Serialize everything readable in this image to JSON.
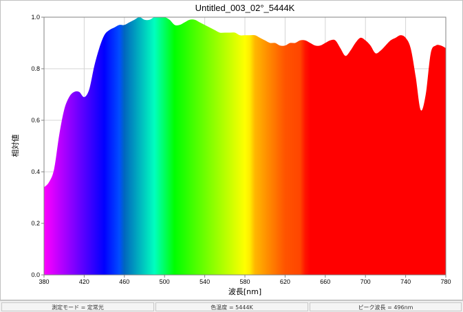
{
  "chart_data": {
    "type": "area",
    "title": "Untitled_003_02°_5444K",
    "xlabel": "波長[nm]",
    "ylabel": "相対値",
    "xlim": [
      380,
      780
    ],
    "ylim": [
      0.0,
      1.0
    ],
    "xticks": [
      "380",
      "420",
      "460",
      "500",
      "540",
      "580",
      "620",
      "660",
      "700",
      "740",
      "780"
    ],
    "yticks": [
      "0.0",
      "0.2",
      "0.4",
      "0.6",
      "0.8",
      "1.0"
    ],
    "grid": true,
    "fill": "visible-spectrum",
    "x": [
      380,
      385,
      390,
      395,
      400,
      405,
      410,
      415,
      420,
      425,
      430,
      435,
      440,
      445,
      450,
      455,
      460,
      465,
      470,
      475,
      480,
      485,
      490,
      495,
      500,
      505,
      510,
      515,
      520,
      525,
      530,
      535,
      540,
      545,
      550,
      555,
      560,
      565,
      570,
      575,
      580,
      585,
      590,
      595,
      600,
      605,
      610,
      615,
      620,
      625,
      630,
      635,
      640,
      645,
      650,
      655,
      660,
      665,
      670,
      675,
      680,
      685,
      690,
      695,
      700,
      705,
      710,
      715,
      720,
      725,
      730,
      735,
      740,
      745,
      750,
      755,
      760,
      765,
      770,
      775,
      780
    ],
    "y": [
      0.34,
      0.36,
      0.41,
      0.54,
      0.64,
      0.69,
      0.71,
      0.71,
      0.69,
      0.72,
      0.81,
      0.88,
      0.93,
      0.95,
      0.96,
      0.97,
      0.97,
      0.98,
      0.99,
      1.0,
      0.99,
      0.99,
      1.0,
      1.0,
      1.0,
      0.99,
      0.97,
      0.97,
      0.98,
      0.99,
      0.99,
      0.98,
      0.97,
      0.96,
      0.95,
      0.94,
      0.94,
      0.94,
      0.94,
      0.93,
      0.93,
      0.93,
      0.93,
      0.92,
      0.91,
      0.9,
      0.9,
      0.89,
      0.89,
      0.9,
      0.9,
      0.91,
      0.91,
      0.9,
      0.89,
      0.89,
      0.9,
      0.91,
      0.91,
      0.88,
      0.85,
      0.87,
      0.9,
      0.92,
      0.91,
      0.89,
      0.86,
      0.87,
      0.89,
      0.91,
      0.92,
      0.93,
      0.92,
      0.88,
      0.77,
      0.64,
      0.7,
      0.86,
      0.89,
      0.89,
      0.88
    ]
  },
  "status_bar": {
    "mode": "測定モード = 定常光",
    "color_temp": "色温度 = 5444K",
    "peak_wavelength": "ピーク波長 = 496nm"
  }
}
